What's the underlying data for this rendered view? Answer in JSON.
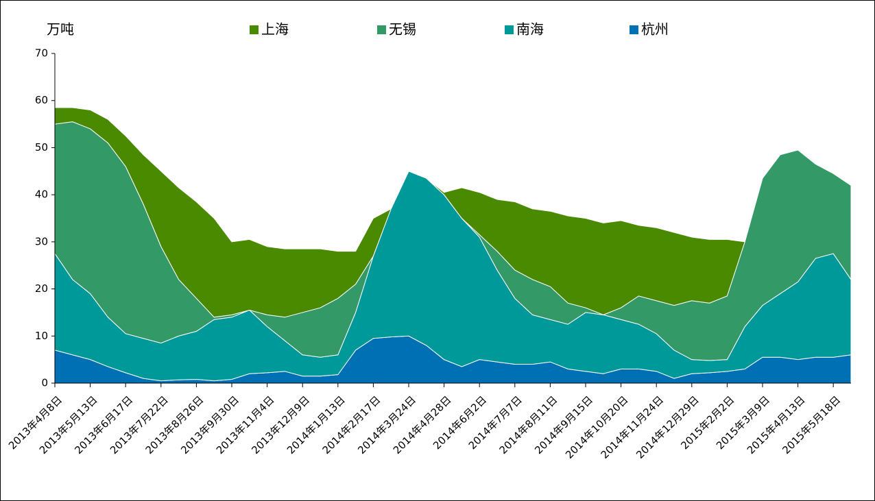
{
  "chart_data": {
    "type": "stacked_area",
    "y_label": "万吨",
    "categories": [
      "2013年4月8日",
      null,
      "2013年5月13日",
      null,
      "2013年6月17日",
      null,
      "2013年7月22日",
      null,
      "2013年8月26日",
      null,
      "2013年9月30日",
      null,
      "2013年11月4日",
      null,
      "2013年12月9日",
      null,
      "2014年1月13日",
      null,
      "2014年2月17日",
      null,
      "2014年3月24日",
      null,
      "2014年4月28日",
      null,
      "2014年6月2日",
      null,
      "2014年7月7日",
      null,
      "2014年8月11日",
      null,
      "2014年9月15日",
      null,
      "2014年10月20日",
      null,
      "2014年11月24日",
      null,
      "2014年12月29日",
      null,
      "2015年2月2日",
      null,
      "2015年3月9日",
      null,
      "2015年4月13日",
      null,
      "2015年5月18日",
      null
    ],
    "series": [
      {
        "name": "上海",
        "color": "#4a8a00",
        "values": [
          3.5,
          3,
          4,
          5,
          6.5,
          10.5,
          16,
          19.5,
          20.5,
          21,
          15.5,
          15,
          14.5,
          14.5,
          13.5,
          12.5,
          10,
          7,
          8,
          0,
          0,
          0,
          0.5,
          6.5,
          9,
          11,
          14.5,
          15,
          16,
          18.5,
          19,
          19.5,
          18.5,
          15,
          15.5,
          15.5,
          13.5,
          13.5,
          12,
          0,
          0,
          0,
          0,
          0,
          0,
          0
        ]
      },
      {
        "name": "无锡",
        "color": "#339966",
        "values": [
          27.5,
          33.5,
          35,
          37,
          35.5,
          28.5,
          20.5,
          12,
          7,
          0.5,
          0.5,
          0,
          2.5,
          5,
          9,
          10.5,
          12,
          6,
          0,
          0,
          0,
          0,
          0,
          0,
          0.5,
          4,
          6,
          7.5,
          7,
          4.5,
          1,
          0,
          2.5,
          6,
          7,
          9.5,
          12.5,
          12.2,
          13.5,
          18,
          27,
          29.5,
          28,
          20,
          17,
          20
        ]
      },
      {
        "name": "南海",
        "color": "#009999",
        "values": [
          20.5,
          16,
          14,
          10.5,
          8.3,
          8.5,
          8,
          9.3,
          10.2,
          13,
          13.2,
          13.5,
          9.8,
          6.5,
          4.5,
          4,
          4.2,
          8,
          17.5,
          27.2,
          35,
          35.5,
          35,
          31.5,
          26,
          19.5,
          14,
          10.5,
          9,
          9.5,
          12.5,
          12.5,
          10.5,
          9.5,
          8,
          6,
          3,
          2.6,
          2.5,
          9,
          11,
          13.5,
          16.5,
          21,
          22,
          16
        ]
      },
      {
        "name": "杭州",
        "color": "#0070b4",
        "values": [
          7,
          6,
          5,
          3.5,
          2.2,
          1,
          0.5,
          0.7,
          0.8,
          0.5,
          0.8,
          2,
          2.2,
          2.5,
          1.5,
          1.5,
          1.8,
          7,
          9.5,
          9.8,
          10,
          8,
          5,
          3.5,
          5,
          4.5,
          4,
          4,
          4.5,
          3,
          2.5,
          2,
          3,
          3,
          2.5,
          1,
          2,
          2.2,
          2.5,
          3,
          5.5,
          5.5,
          5,
          5.5,
          5.5,
          6
        ]
      }
    ],
    "ylim": [
      0,
      70
    ],
    "yticks": [
      0,
      10,
      20,
      30,
      40,
      50,
      60,
      70
    ]
  }
}
